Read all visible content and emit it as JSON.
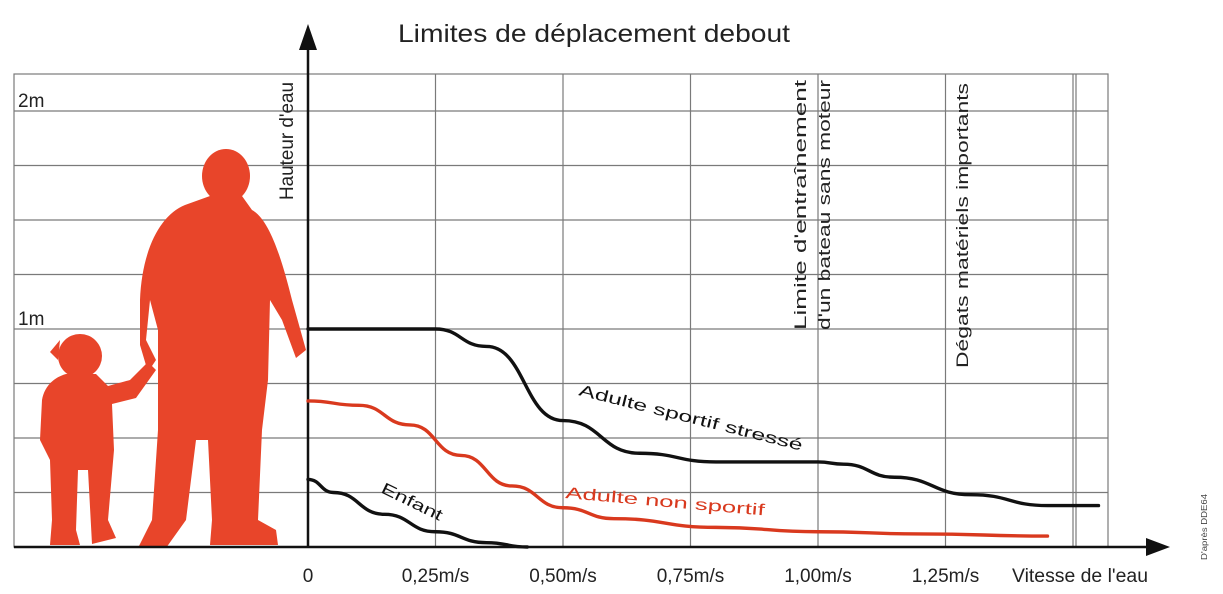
{
  "chart_data": {
    "type": "line",
    "title": "Limites de déplacement debout",
    "xlabel": "Vitesse de l'eau",
    "ylabel": "Hauteur d'eau",
    "x_tick_labels": [
      "0",
      "0,25m/s",
      "0,50m/s",
      "0,75m/s",
      "1,00m/s",
      "1,25m/s"
    ],
    "x_tick_values": [
      0,
      0.25,
      0.5,
      0.75,
      1.0,
      1.25
    ],
    "y_tick_labels": [
      "1m",
      "2m"
    ],
    "y_tick_values": [
      1,
      2
    ],
    "xlim": [
      0,
      1.55
    ],
    "ylim": [
      0,
      2.2
    ],
    "grid": true,
    "series": [
      {
        "name": "Adulte sportif stressé",
        "color": "#111111",
        "x": [
          0,
          0.25,
          0.35,
          0.5,
          0.65,
          0.8,
          1.0,
          1.05,
          1.15,
          1.3,
          1.45,
          1.55
        ],
        "y": [
          1.0,
          1.0,
          0.92,
          0.58,
          0.43,
          0.39,
          0.39,
          0.38,
          0.32,
          0.24,
          0.19,
          0.19
        ]
      },
      {
        "name": "Adulte non sportif",
        "color": "#d9391e",
        "x": [
          0,
          0.1,
          0.2,
          0.3,
          0.4,
          0.5,
          0.6,
          0.8,
          1.0,
          1.2,
          1.45
        ],
        "y": [
          0.67,
          0.65,
          0.56,
          0.42,
          0.28,
          0.18,
          0.13,
          0.09,
          0.07,
          0.06,
          0.05
        ]
      },
      {
        "name": "Enfant",
        "color": "#111111",
        "x": [
          0,
          0.05,
          0.15,
          0.25,
          0.35,
          0.43
        ],
        "y": [
          0.31,
          0.25,
          0.15,
          0.07,
          0.02,
          0.0
        ]
      }
    ],
    "annotations": [
      {
        "text": "Limite d'entraînement d'un bateau sans moteur",
        "x": 1.0
      },
      {
        "text": "Dégats matériels importants",
        "x": 1.25
      }
    ]
  },
  "credit": "D'après DDE64",
  "colors": {
    "red": "#d9391e",
    "black": "#111111",
    "grid": "#7a7a7a"
  },
  "icons": [
    "adult-silhouette-icon",
    "child-silhouette-icon"
  ]
}
